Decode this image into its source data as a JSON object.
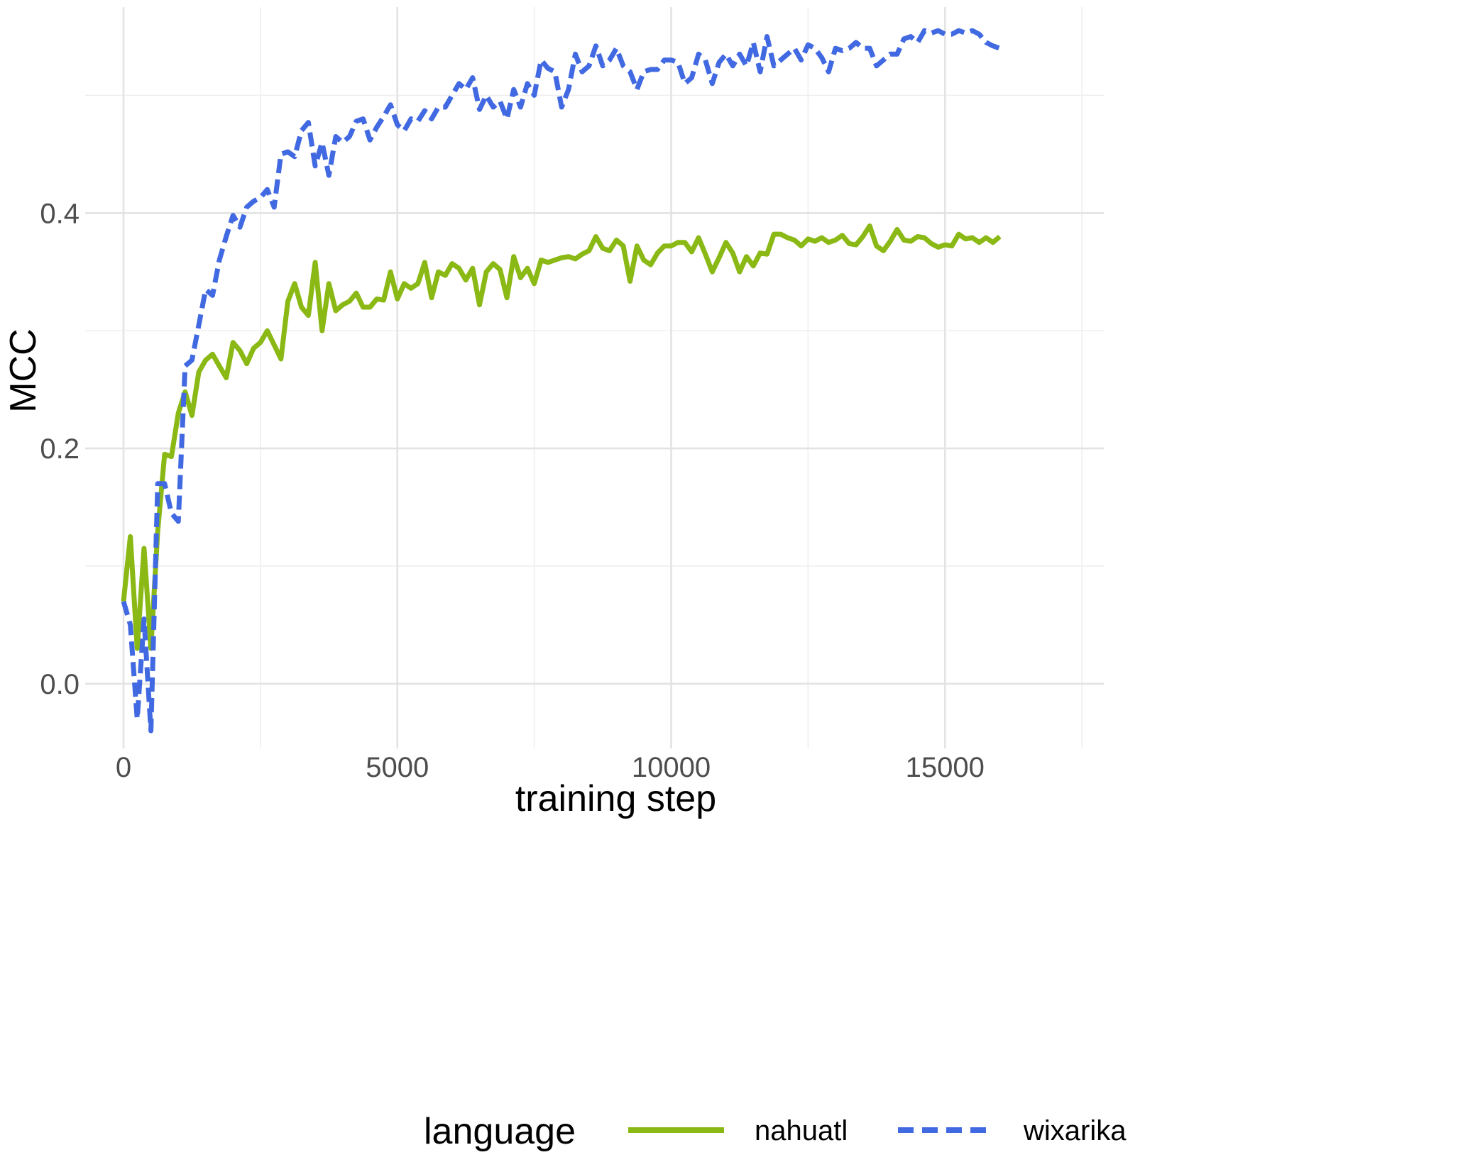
{
  "chart_data": {
    "type": "line",
    "xlabel": "training step",
    "ylabel": "MCC",
    "xlim": [
      -700,
      17900
    ],
    "ylim": [
      -0.055,
      0.575
    ],
    "x_ticks": [
      0,
      5000,
      10000,
      15000
    ],
    "x_tick_labels": [
      "0",
      "5000",
      "10000",
      "15000"
    ],
    "y_ticks": [
      0.0,
      0.2,
      0.4
    ],
    "y_tick_labels": [
      "0.0",
      "0.2",
      "0.4"
    ],
    "grid": true,
    "legend": {
      "title": "language",
      "position": "bottom"
    },
    "series": [
      {
        "name": "nahuatl",
        "color": "#8ab814",
        "dash": "solid",
        "points": [
          [
            0,
            0.07
          ],
          [
            125,
            0.125
          ],
          [
            250,
            0.03
          ],
          [
            375,
            0.115
          ],
          [
            500,
            0.03
          ],
          [
            625,
            0.13
          ],
          [
            750,
            0.195
          ],
          [
            875,
            0.193
          ],
          [
            1000,
            0.23
          ],
          [
            1125,
            0.248
          ],
          [
            1250,
            0.228
          ],
          [
            1375,
            0.265
          ],
          [
            1500,
            0.275
          ],
          [
            1625,
            0.28
          ],
          [
            1750,
            0.27
          ],
          [
            1875,
            0.26
          ],
          [
            2000,
            0.29
          ],
          [
            2125,
            0.283
          ],
          [
            2250,
            0.272
          ],
          [
            2375,
            0.285
          ],
          [
            2500,
            0.29
          ],
          [
            2625,
            0.3
          ],
          [
            2750,
            0.288
          ],
          [
            2875,
            0.276
          ],
          [
            3000,
            0.325
          ],
          [
            3125,
            0.34
          ],
          [
            3250,
            0.32
          ],
          [
            3375,
            0.313
          ],
          [
            3500,
            0.358
          ],
          [
            3625,
            0.3
          ],
          [
            3750,
            0.34
          ],
          [
            3875,
            0.317
          ],
          [
            4000,
            0.322
          ],
          [
            4125,
            0.325
          ],
          [
            4250,
            0.332
          ],
          [
            4375,
            0.32
          ],
          [
            4500,
            0.32
          ],
          [
            4625,
            0.327
          ],
          [
            4750,
            0.326
          ],
          [
            4875,
            0.35
          ],
          [
            5000,
            0.327
          ],
          [
            5125,
            0.34
          ],
          [
            5250,
            0.336
          ],
          [
            5375,
            0.34
          ],
          [
            5500,
            0.358
          ],
          [
            5625,
            0.328
          ],
          [
            5750,
            0.35
          ],
          [
            5875,
            0.347
          ],
          [
            6000,
            0.357
          ],
          [
            6125,
            0.353
          ],
          [
            6250,
            0.343
          ],
          [
            6375,
            0.353
          ],
          [
            6500,
            0.322
          ],
          [
            6625,
            0.35
          ],
          [
            6750,
            0.357
          ],
          [
            6875,
            0.352
          ],
          [
            7000,
            0.328
          ],
          [
            7125,
            0.363
          ],
          [
            7250,
            0.345
          ],
          [
            7375,
            0.353
          ],
          [
            7500,
            0.34
          ],
          [
            7625,
            0.36
          ],
          [
            7750,
            0.358
          ],
          [
            7875,
            0.36
          ],
          [
            8000,
            0.362
          ],
          [
            8125,
            0.363
          ],
          [
            8250,
            0.361
          ],
          [
            8375,
            0.365
          ],
          [
            8500,
            0.368
          ],
          [
            8625,
            0.38
          ],
          [
            8750,
            0.37
          ],
          [
            8875,
            0.368
          ],
          [
            9000,
            0.377
          ],
          [
            9125,
            0.372
          ],
          [
            9250,
            0.342
          ],
          [
            9375,
            0.372
          ],
          [
            9500,
            0.36
          ],
          [
            9625,
            0.356
          ],
          [
            9750,
            0.366
          ],
          [
            9875,
            0.372
          ],
          [
            10000,
            0.372
          ],
          [
            10125,
            0.375
          ],
          [
            10250,
            0.375
          ],
          [
            10375,
            0.367
          ],
          [
            10500,
            0.379
          ],
          [
            10625,
            0.365
          ],
          [
            10750,
            0.35
          ],
          [
            10875,
            0.362
          ],
          [
            11000,
            0.375
          ],
          [
            11125,
            0.366
          ],
          [
            11250,
            0.35
          ],
          [
            11375,
            0.363
          ],
          [
            11500,
            0.355
          ],
          [
            11625,
            0.366
          ],
          [
            11750,
            0.365
          ],
          [
            11875,
            0.382
          ],
          [
            12000,
            0.382
          ],
          [
            12125,
            0.379
          ],
          [
            12250,
            0.377
          ],
          [
            12375,
            0.372
          ],
          [
            12500,
            0.378
          ],
          [
            12625,
            0.376
          ],
          [
            12750,
            0.379
          ],
          [
            12875,
            0.375
          ],
          [
            13000,
            0.377
          ],
          [
            13125,
            0.381
          ],
          [
            13250,
            0.374
          ],
          [
            13375,
            0.373
          ],
          [
            13500,
            0.38
          ],
          [
            13625,
            0.389
          ],
          [
            13750,
            0.372
          ],
          [
            13875,
            0.368
          ],
          [
            14000,
            0.376
          ],
          [
            14125,
            0.386
          ],
          [
            14250,
            0.377
          ],
          [
            14375,
            0.376
          ],
          [
            14500,
            0.38
          ],
          [
            14625,
            0.379
          ],
          [
            14750,
            0.374
          ],
          [
            14875,
            0.371
          ],
          [
            15000,
            0.373
          ],
          [
            15125,
            0.372
          ],
          [
            15250,
            0.382
          ],
          [
            15375,
            0.378
          ],
          [
            15500,
            0.379
          ],
          [
            15625,
            0.375
          ],
          [
            15750,
            0.379
          ],
          [
            15875,
            0.375
          ],
          [
            16000,
            0.38
          ]
        ]
      },
      {
        "name": "wixarika",
        "color": "#4169e1",
        "dash": "dashed",
        "points": [
          [
            0,
            0.07
          ],
          [
            125,
            0.05
          ],
          [
            250,
            -0.03
          ],
          [
            375,
            0.055
          ],
          [
            500,
            -0.04
          ],
          [
            625,
            0.17
          ],
          [
            750,
            0.17
          ],
          [
            875,
            0.145
          ],
          [
            1000,
            0.138
          ],
          [
            1125,
            0.27
          ],
          [
            1250,
            0.275
          ],
          [
            1375,
            0.305
          ],
          [
            1500,
            0.335
          ],
          [
            1625,
            0.33
          ],
          [
            1750,
            0.36
          ],
          [
            1875,
            0.38
          ],
          [
            2000,
            0.398
          ],
          [
            2125,
            0.388
          ],
          [
            2250,
            0.405
          ],
          [
            2375,
            0.41
          ],
          [
            2500,
            0.413
          ],
          [
            2625,
            0.42
          ],
          [
            2750,
            0.405
          ],
          [
            2875,
            0.45
          ],
          [
            3000,
            0.452
          ],
          [
            3125,
            0.448
          ],
          [
            3250,
            0.47
          ],
          [
            3375,
            0.477
          ],
          [
            3500,
            0.44
          ],
          [
            3625,
            0.46
          ],
          [
            3750,
            0.432
          ],
          [
            3875,
            0.465
          ],
          [
            4000,
            0.46
          ],
          [
            4125,
            0.465
          ],
          [
            4250,
            0.478
          ],
          [
            4375,
            0.48
          ],
          [
            4500,
            0.462
          ],
          [
            4625,
            0.473
          ],
          [
            4750,
            0.482
          ],
          [
            4875,
            0.492
          ],
          [
            5000,
            0.475
          ],
          [
            5125,
            0.47
          ],
          [
            5250,
            0.48
          ],
          [
            5375,
            0.478
          ],
          [
            5500,
            0.487
          ],
          [
            5625,
            0.48
          ],
          [
            5750,
            0.49
          ],
          [
            5875,
            0.49
          ],
          [
            6000,
            0.5
          ],
          [
            6125,
            0.51
          ],
          [
            6250,
            0.505
          ],
          [
            6375,
            0.515
          ],
          [
            6500,
            0.488
          ],
          [
            6625,
            0.5
          ],
          [
            6750,
            0.49
          ],
          [
            6875,
            0.495
          ],
          [
            7000,
            0.48
          ],
          [
            7125,
            0.505
          ],
          [
            7250,
            0.49
          ],
          [
            7375,
            0.51
          ],
          [
            7500,
            0.5
          ],
          [
            7625,
            0.53
          ],
          [
            7750,
            0.523
          ],
          [
            7875,
            0.52
          ],
          [
            8000,
            0.49
          ],
          [
            8125,
            0.505
          ],
          [
            8250,
            0.535
          ],
          [
            8375,
            0.52
          ],
          [
            8500,
            0.525
          ],
          [
            8625,
            0.542
          ],
          [
            8750,
            0.525
          ],
          [
            8875,
            0.53
          ],
          [
            9000,
            0.54
          ],
          [
            9125,
            0.525
          ],
          [
            9250,
            0.52
          ],
          [
            9375,
            0.505
          ],
          [
            9500,
            0.52
          ],
          [
            9625,
            0.522
          ],
          [
            9750,
            0.522
          ],
          [
            9875,
            0.53
          ],
          [
            10000,
            0.53
          ],
          [
            10125,
            0.528
          ],
          [
            10250,
            0.51
          ],
          [
            10375,
            0.515
          ],
          [
            10500,
            0.535
          ],
          [
            10625,
            0.53
          ],
          [
            10750,
            0.51
          ],
          [
            10875,
            0.528
          ],
          [
            11000,
            0.535
          ],
          [
            11125,
            0.525
          ],
          [
            11250,
            0.535
          ],
          [
            11375,
            0.525
          ],
          [
            11500,
            0.545
          ],
          [
            11625,
            0.52
          ],
          [
            11750,
            0.55
          ],
          [
            11875,
            0.525
          ],
          [
            12000,
            0.53
          ],
          [
            12125,
            0.535
          ],
          [
            12250,
            0.54
          ],
          [
            12375,
            0.53
          ],
          [
            12500,
            0.543
          ],
          [
            12625,
            0.54
          ],
          [
            12750,
            0.532
          ],
          [
            12875,
            0.52
          ],
          [
            13000,
            0.54
          ],
          [
            13125,
            0.538
          ],
          [
            13250,
            0.54
          ],
          [
            13375,
            0.545
          ],
          [
            13500,
            0.54
          ],
          [
            13625,
            0.54
          ],
          [
            13750,
            0.525
          ],
          [
            13875,
            0.53
          ],
          [
            14000,
            0.535
          ],
          [
            14125,
            0.535
          ],
          [
            14250,
            0.548
          ],
          [
            14375,
            0.55
          ],
          [
            14500,
            0.545
          ],
          [
            14625,
            0.555
          ],
          [
            14750,
            0.553
          ],
          [
            14875,
            0.555
          ],
          [
            15000,
            0.552
          ],
          [
            15125,
            0.552
          ],
          [
            15250,
            0.555
          ],
          [
            15375,
            0.553
          ],
          [
            15500,
            0.555
          ],
          [
            15625,
            0.552
          ],
          [
            15750,
            0.545
          ],
          [
            15875,
            0.542
          ],
          [
            16000,
            0.54
          ]
        ]
      }
    ]
  }
}
